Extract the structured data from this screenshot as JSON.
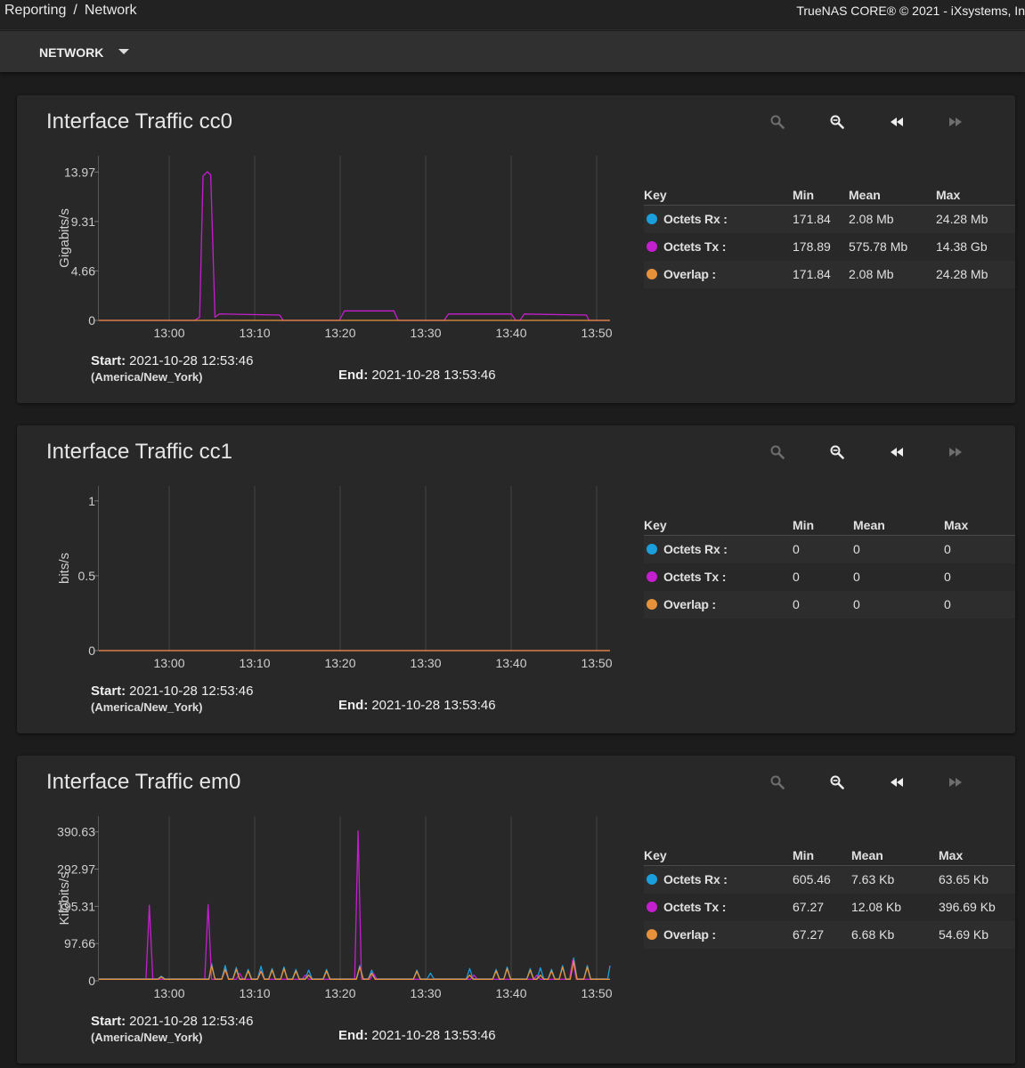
{
  "topbar": {
    "breadcrumb_parent": "Reporting",
    "breadcrumb_sep": "/",
    "breadcrumb_current": "Network",
    "copyright": "TrueNAS CORE® © 2021 - iXsystems, In"
  },
  "subbar": {
    "menu_label": "NETWORK"
  },
  "colors": {
    "rx": "#1a9fdc",
    "tx": "#c41fce",
    "overlap": "#e7913a",
    "grid": "#444444",
    "axis": "#555555"
  },
  "legend_headers": {
    "key": "Key",
    "min": "Min",
    "mean": "Mean",
    "max": "Max"
  },
  "time_labels": {
    "start": "Start:",
    "end": "End:"
  },
  "cards": [
    {
      "title": "Interface Traffic cc0",
      "start": "2021-10-28 12:53:46",
      "timezone": "(America/New_York)",
      "end": "2021-10-28 13:53:46",
      "legend": [
        {
          "name": "Octets Rx :",
          "min": "171.84",
          "mean": "2.08 Mb",
          "max": "24.28 Mb"
        },
        {
          "name": "Octets Tx :",
          "min": "178.89",
          "mean": "575.78 Mb",
          "max": "14.38 Gb"
        },
        {
          "name": "Overlap :",
          "min": "171.84",
          "mean": "2.08 Mb",
          "max": "24.28 Mb"
        }
      ]
    },
    {
      "title": "Interface Traffic cc1",
      "start": "2021-10-28 12:53:46",
      "timezone": "(America/New_York)",
      "end": "2021-10-28 13:53:46",
      "legend": [
        {
          "name": "Octets Rx :",
          "min": "0",
          "mean": "0",
          "max": "0"
        },
        {
          "name": "Octets Tx :",
          "min": "0",
          "mean": "0",
          "max": "0"
        },
        {
          "name": "Overlap :",
          "min": "0",
          "mean": "0",
          "max": "0"
        }
      ]
    },
    {
      "title": "Interface Traffic em0",
      "start": "2021-10-28 12:53:46",
      "timezone": "(America/New_York)",
      "end": "2021-10-28 13:53:46",
      "legend": [
        {
          "name": "Octets Rx :",
          "min": "605.46",
          "mean": "7.63 Kb",
          "max": "63.65 Kb"
        },
        {
          "name": "Octets Tx :",
          "min": "67.27",
          "mean": "12.08 Kb",
          "max": "396.69 Kb"
        },
        {
          "name": "Overlap :",
          "min": "67.27",
          "mean": "6.68 Kb",
          "max": "54.69 Kb"
        }
      ]
    }
  ],
  "chart_data": [
    {
      "type": "line",
      "ylabel": "Gigabits/s",
      "x_ticks": [
        "13:00",
        "13:10",
        "13:20",
        "13:30",
        "13:40",
        "13:50"
      ],
      "y_ticks": [
        "13.97",
        "9.31",
        "4.66",
        "0"
      ],
      "y_tick_values": [
        13.97,
        9.31,
        4.66,
        0
      ],
      "xlim_minutes": [
        53.77,
        113.77
      ],
      "ylim": [
        0,
        15.5
      ],
      "series": [
        {
          "key": "tx",
          "points": [
            [
              53.77,
              0
            ],
            [
              59,
              0
            ],
            [
              65,
              0
            ],
            [
              65.6,
              0.3
            ],
            [
              66.0,
              13.6
            ],
            [
              66.5,
              14.0
            ],
            [
              66.9,
              13.7
            ],
            [
              67.4,
              0.3
            ],
            [
              67.9,
              0.6
            ],
            [
              68.2,
              0.6
            ],
            [
              75,
              0.5
            ],
            [
              75.4,
              0
            ],
            [
              82,
              0
            ],
            [
              82.6,
              0.9
            ],
            [
              88.4,
              0.9
            ],
            [
              88.9,
              0
            ],
            [
              94.3,
              0
            ],
            [
              94.8,
              0.6
            ],
            [
              102.2,
              0.6
            ],
            [
              102.7,
              0
            ],
            [
              103.2,
              0
            ],
            [
              103.7,
              0.6
            ],
            [
              111.0,
              0.5
            ],
            [
              111.3,
              0
            ],
            [
              113.77,
              0
            ]
          ]
        },
        {
          "key": "overlap",
          "points": [
            [
              53.77,
              0
            ],
            [
              113.77,
              0
            ]
          ]
        }
      ]
    },
    {
      "type": "line",
      "ylabel": "bits/s",
      "x_ticks": [
        "13:00",
        "13:10",
        "13:20",
        "13:30",
        "13:40",
        "13:50"
      ],
      "y_ticks": [
        "1",
        "0.5",
        "0"
      ],
      "y_tick_values": [
        1,
        0.5,
        0
      ],
      "xlim_minutes": [
        53.77,
        113.77
      ],
      "ylim": [
        0,
        1.1
      ],
      "series": [
        {
          "key": "tx",
          "points": [
            [
              53.77,
              0
            ],
            [
              113.77,
              0
            ]
          ]
        },
        {
          "key": "overlap",
          "points": [
            [
              53.77,
              0
            ],
            [
              113.77,
              0
            ]
          ]
        }
      ]
    },
    {
      "type": "line",
      "ylabel": "Kilobits/s",
      "x_ticks": [
        "13:00",
        "13:10",
        "13:20",
        "13:30",
        "13:40",
        "13:50"
      ],
      "y_ticks": [
        "390.63",
        "292.97",
        "195.31",
        "97.66",
        "0"
      ],
      "y_tick_values": [
        390.63,
        292.97,
        195.31,
        97.66,
        0
      ],
      "xlim_minutes": [
        53.77,
        113.77
      ],
      "ylim": [
        0,
        432
      ],
      "series": [
        {
          "key": "rx",
          "points": [
            [
              53.77,
              5
            ],
            [
              60.7,
              5
            ],
            [
              61.1,
              12
            ],
            [
              61.5,
              5
            ],
            [
              66.7,
              5
            ],
            [
              67.0,
              45
            ],
            [
              67.4,
              5
            ],
            [
              68.2,
              5
            ],
            [
              68.6,
              40
            ],
            [
              69.0,
              5
            ],
            [
              69.5,
              5
            ],
            [
              69.9,
              35
            ],
            [
              70.3,
              5
            ],
            [
              70.9,
              5
            ],
            [
              71.3,
              30
            ],
            [
              71.7,
              5
            ],
            [
              72.4,
              5
            ],
            [
              72.8,
              38
            ],
            [
              73.2,
              5
            ],
            [
              73.7,
              5
            ],
            [
              74.1,
              32
            ],
            [
              74.5,
              5
            ],
            [
              75.1,
              5
            ],
            [
              75.5,
              36
            ],
            [
              75.9,
              5
            ],
            [
              76.5,
              5
            ],
            [
              76.9,
              30
            ],
            [
              77.3,
              5
            ],
            [
              78.0,
              5
            ],
            [
              78.4,
              28
            ],
            [
              78.8,
              5
            ],
            [
              80.1,
              5
            ],
            [
              80.5,
              30
            ],
            [
              80.9,
              5
            ],
            [
              84.0,
              5
            ],
            [
              84.4,
              40
            ],
            [
              84.8,
              5
            ],
            [
              85.4,
              5
            ],
            [
              85.8,
              28
            ],
            [
              86.2,
              5
            ],
            [
              90.7,
              5
            ],
            [
              91.1,
              28
            ],
            [
              91.5,
              5
            ],
            [
              92.3,
              5
            ],
            [
              92.7,
              20
            ],
            [
              93.1,
              5
            ],
            [
              96.9,
              5
            ],
            [
              97.3,
              32
            ],
            [
              97.7,
              5
            ],
            [
              100.0,
              5
            ],
            [
              100.4,
              30
            ],
            [
              100.8,
              5
            ],
            [
              101.3,
              5
            ],
            [
              101.7,
              36
            ],
            [
              102.1,
              5
            ],
            [
              104.0,
              5
            ],
            [
              104.4,
              32
            ],
            [
              104.8,
              5
            ],
            [
              105.2,
              5
            ],
            [
              105.6,
              34
            ],
            [
              106.0,
              5
            ],
            [
              106.5,
              5
            ],
            [
              106.9,
              30
            ],
            [
              107.3,
              5
            ],
            [
              107.8,
              5
            ],
            [
              108.2,
              40
            ],
            [
              108.6,
              5
            ],
            [
              109.1,
              5
            ],
            [
              109.5,
              60
            ],
            [
              109.9,
              5
            ],
            [
              110.7,
              5
            ],
            [
              111.1,
              40
            ],
            [
              111.5,
              5
            ],
            [
              113.5,
              5
            ],
            [
              113.77,
              40
            ]
          ]
        },
        {
          "key": "tx",
          "points": [
            [
              53.77,
              4
            ],
            [
              59.3,
              4
            ],
            [
              59.7,
              198
            ],
            [
              60.1,
              4
            ],
            [
              66.2,
              4
            ],
            [
              66.6,
              200
            ],
            [
              67.0,
              4
            ],
            [
              68.2,
              4
            ],
            [
              68.6,
              30
            ],
            [
              69.0,
              4
            ],
            [
              69.9,
              4
            ],
            [
              70.3,
              20
            ],
            [
              70.7,
              4
            ],
            [
              72.4,
              4
            ],
            [
              72.8,
              25
            ],
            [
              73.2,
              4
            ],
            [
              77.6,
              4
            ],
            [
              78.0,
              15
            ],
            [
              78.4,
              4
            ],
            [
              83.8,
              4
            ],
            [
              84.2,
              393
            ],
            [
              84.6,
              4
            ],
            [
              85.6,
              4
            ],
            [
              86.0,
              20
            ],
            [
              86.4,
              4
            ],
            [
              97.4,
              4
            ],
            [
              97.8,
              15
            ],
            [
              98.2,
              4
            ],
            [
              104.8,
              4
            ],
            [
              105.2,
              15
            ],
            [
              105.6,
              4
            ],
            [
              109.0,
              4
            ],
            [
              109.4,
              55
            ],
            [
              109.8,
              4
            ],
            [
              113.77,
              4
            ]
          ]
        },
        {
          "key": "overlap",
          "points": [
            [
              53.77,
              4
            ],
            [
              60.7,
              4
            ],
            [
              61.1,
              10
            ],
            [
              61.5,
              4
            ],
            [
              66.7,
              4
            ],
            [
              67.0,
              40
            ],
            [
              67.4,
              4
            ],
            [
              68.2,
              4
            ],
            [
              68.6,
              30
            ],
            [
              69.0,
              4
            ],
            [
              69.5,
              4
            ],
            [
              69.9,
              30
            ],
            [
              70.3,
              4
            ],
            [
              70.9,
              4
            ],
            [
              71.3,
              26
            ],
            [
              71.7,
              4
            ],
            [
              72.4,
              4
            ],
            [
              72.8,
              25
            ],
            [
              73.2,
              4
            ],
            [
              73.7,
              4
            ],
            [
              74.1,
              28
            ],
            [
              74.5,
              4
            ],
            [
              75.1,
              4
            ],
            [
              75.5,
              32
            ],
            [
              75.9,
              4
            ],
            [
              76.5,
              4
            ],
            [
              76.9,
              26
            ],
            [
              77.3,
              4
            ],
            [
              78.0,
              4
            ],
            [
              78.4,
              15
            ],
            [
              78.8,
              4
            ],
            [
              80.1,
              4
            ],
            [
              80.5,
              26
            ],
            [
              80.9,
              4
            ],
            [
              84.0,
              4
            ],
            [
              84.4,
              36
            ],
            [
              84.8,
              4
            ],
            [
              85.4,
              4
            ],
            [
              85.8,
              20
            ],
            [
              86.2,
              4
            ],
            [
              90.7,
              4
            ],
            [
              91.1,
              25
            ],
            [
              91.5,
              4
            ],
            [
              96.9,
              4
            ],
            [
              97.3,
              15
            ],
            [
              97.7,
              4
            ],
            [
              100.0,
              4
            ],
            [
              100.4,
              26
            ],
            [
              100.8,
              4
            ],
            [
              101.3,
              4
            ],
            [
              101.7,
              32
            ],
            [
              102.1,
              4
            ],
            [
              104.0,
              4
            ],
            [
              104.4,
              28
            ],
            [
              104.8,
              4
            ],
            [
              105.2,
              4
            ],
            [
              105.6,
              15
            ],
            [
              106.0,
              4
            ],
            [
              106.5,
              4
            ],
            [
              106.9,
              26
            ],
            [
              107.3,
              4
            ],
            [
              107.8,
              4
            ],
            [
              108.2,
              36
            ],
            [
              108.6,
              4
            ],
            [
              109.1,
              4
            ],
            [
              109.5,
              52
            ],
            [
              109.9,
              4
            ],
            [
              110.7,
              4
            ],
            [
              111.1,
              36
            ],
            [
              111.5,
              4
            ],
            [
              113.77,
              4
            ]
          ]
        }
      ]
    }
  ]
}
